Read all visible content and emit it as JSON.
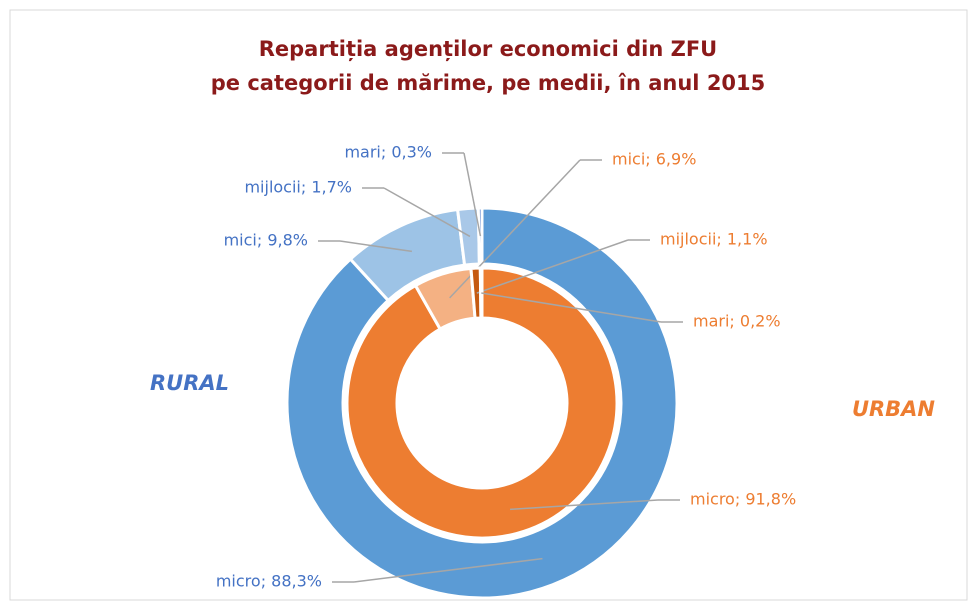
{
  "chart_data": {
    "type": "donut",
    "title": [
      "Repartiția agenților economici din ZFU",
      "pe categorii de mărime, pe medii, în anul 2015"
    ],
    "categories": [
      "micro",
      "mici",
      "mijlocii",
      "mari"
    ],
    "series": [
      {
        "name": "RURAL",
        "ring": "outer",
        "label_color": "#4472c4",
        "colors": [
          "#5b9bd5",
          "#9dc3e6",
          "#a9c8e8",
          "#4472c4"
        ],
        "values": [
          88.3,
          9.8,
          1.7,
          0.3
        ],
        "value_labels": [
          "micro; 88,3%",
          "mici; 9,8%",
          "mijlocii; 1,7%",
          "mari; 0,3%"
        ]
      },
      {
        "name": "URBAN",
        "ring": "inner",
        "label_color": "#ed7d31",
        "colors": [
          "#ed7d31",
          "#f4b183",
          "#c55a11",
          "#843c0c"
        ],
        "values": [
          91.8,
          6.9,
          1.1,
          0.2
        ],
        "value_labels": [
          "micro; 91,8%",
          "mici; 6,9%",
          "mijlocii; 1,1%",
          "mari; 0,2%"
        ]
      }
    ]
  }
}
